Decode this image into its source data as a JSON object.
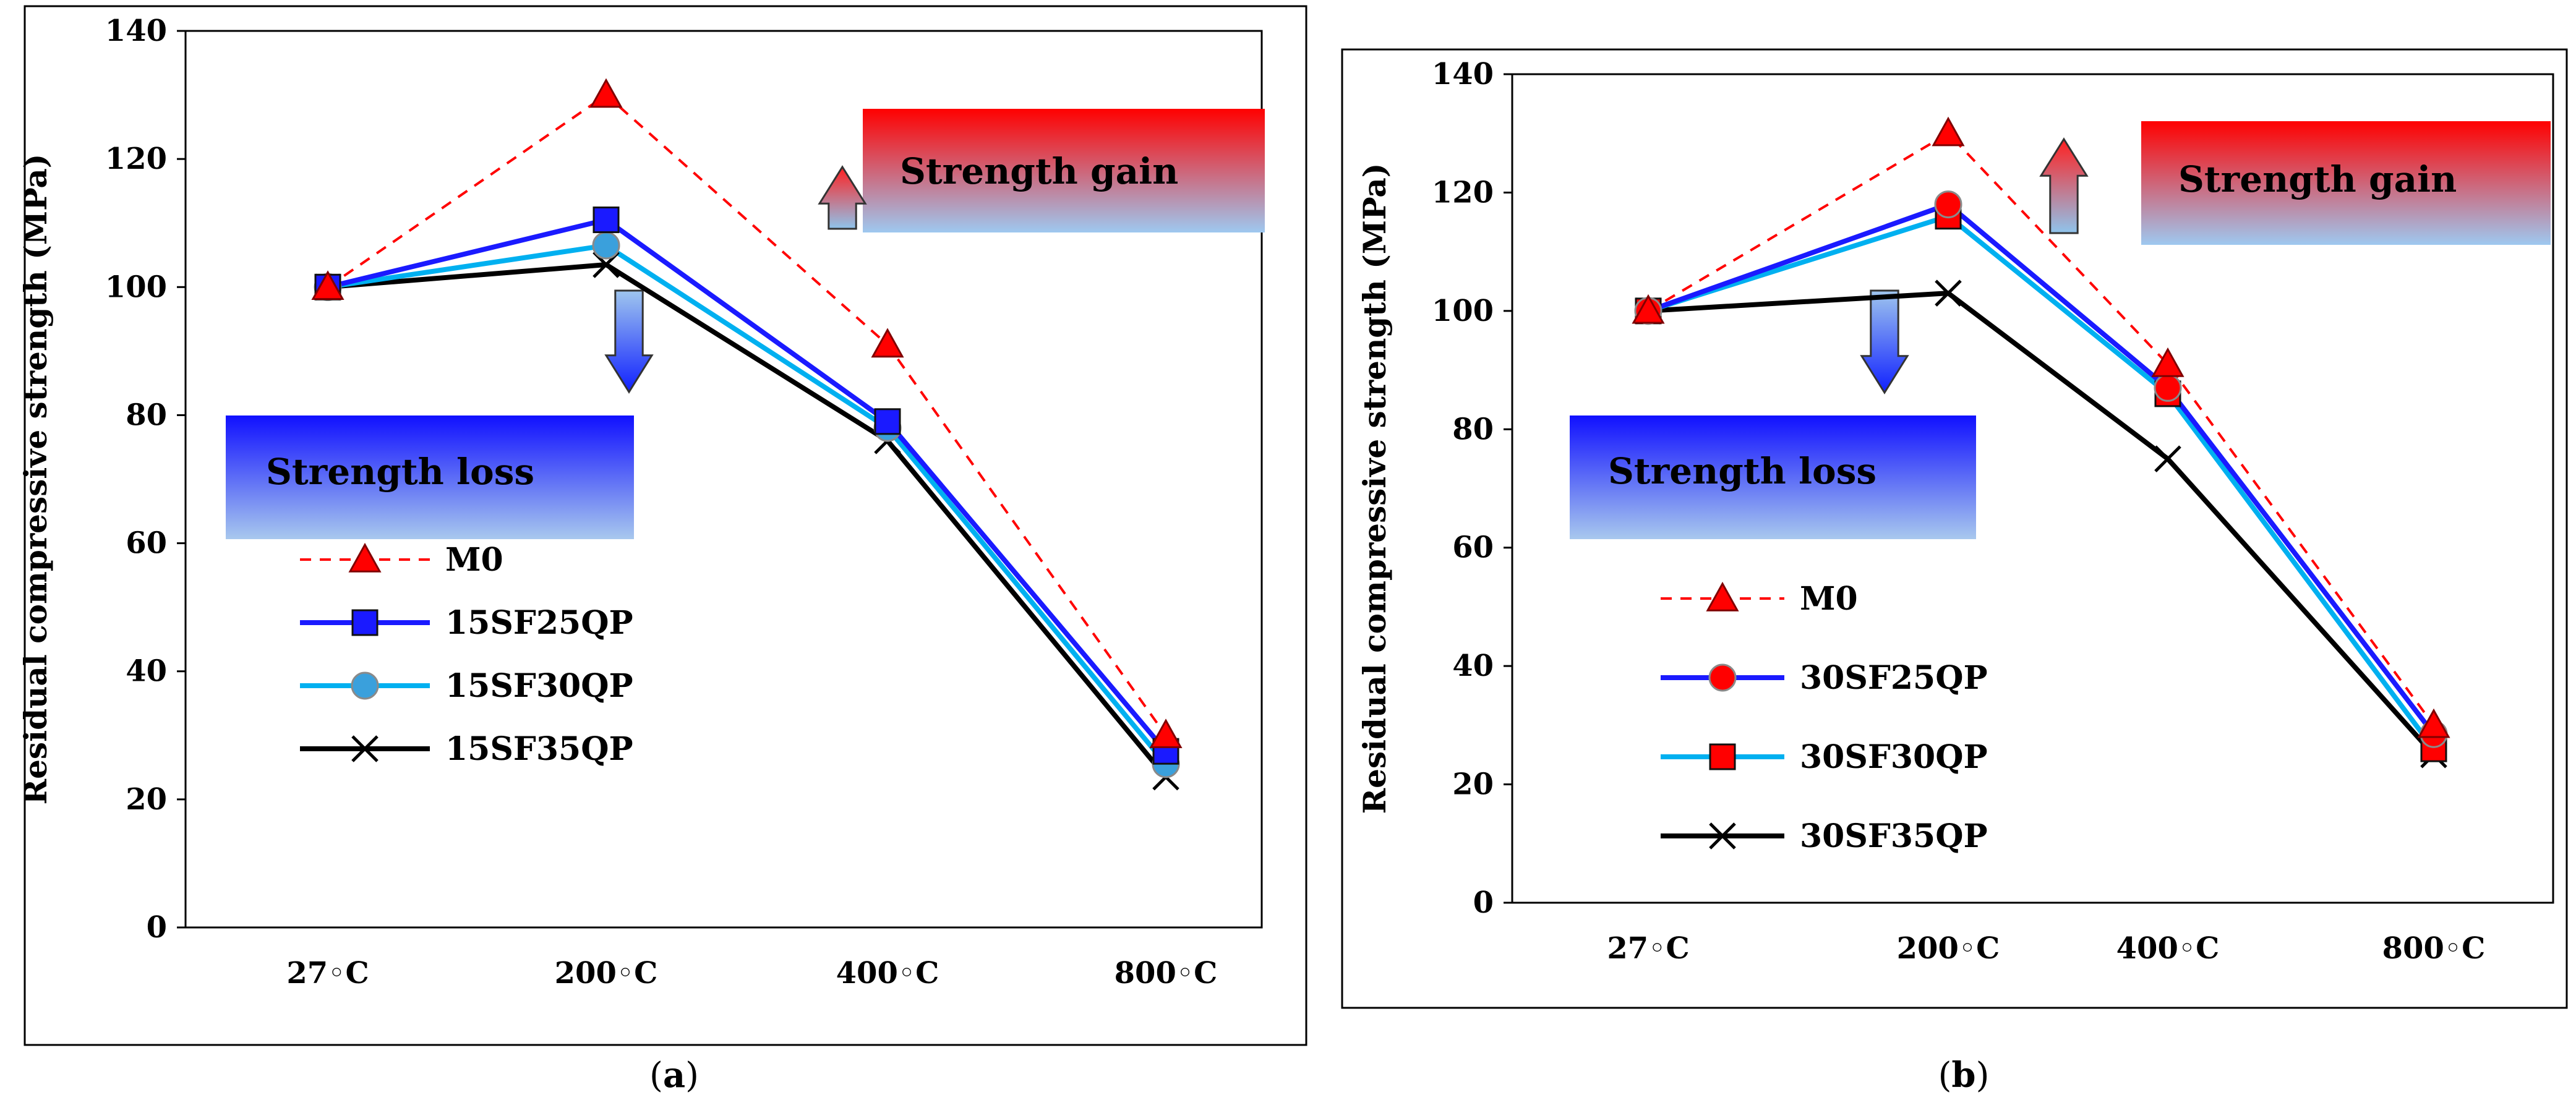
{
  "colors": {
    "M0": "#ff0000",
    "blue": "#1a1aff",
    "cyan": "#00b0f0",
    "black": "#000000",
    "gain_top": "#ff0000",
    "gain_bottom": "#9ec8f0",
    "loss_top": "#1010ff",
    "loss_bottom": "#a8c8ee"
  },
  "chart_data": [
    {
      "type": "line",
      "panel_label": "a",
      "ylabel": "Residual compressive strength (MPa)",
      "ylim": [
        0,
        140
      ],
      "yticks": [
        0,
        20,
        40,
        60,
        80,
        100,
        120,
        140
      ],
      "categories": [
        "27◦C",
        "200◦C",
        "400◦C",
        "800◦C"
      ],
      "gain_label": "Strength gain",
      "loss_label": "Strength loss",
      "series": [
        {
          "name": "M0",
          "values": [
            100,
            130,
            91,
            30
          ],
          "color": "#ff0000",
          "marker": "triangle",
          "dashed": true,
          "fill": "#ff0000"
        },
        {
          "name": "15SF25QP",
          "values": [
            100,
            110.5,
            79,
            27.5
          ],
          "color": "#1a1aff",
          "marker": "square",
          "dashed": false,
          "fill": "#1a1aff"
        },
        {
          "name": "15SF30QP",
          "values": [
            100,
            106.5,
            78,
            25.5
          ],
          "color": "#00b0f0",
          "marker": "circle",
          "dashed": false,
          "fill": "#3aa0dc"
        },
        {
          "name": "15SF35QP",
          "values": [
            100,
            103.5,
            76,
            23.5
          ],
          "color": "#000000",
          "marker": "x",
          "dashed": false,
          "fill": "none"
        }
      ]
    },
    {
      "type": "line",
      "panel_label": "b",
      "ylabel": "Residual compressive strength (MPa)",
      "ylim": [
        0,
        140
      ],
      "yticks": [
        0,
        20,
        40,
        60,
        80,
        100,
        120,
        140
      ],
      "categories": [
        "27◦C",
        "200◦C",
        "400◦C",
        "800◦C"
      ],
      "gain_label": "Strength gain",
      "loss_label": "Strength loss",
      "series": [
        {
          "name": "M0",
          "values": [
            100,
            130,
            91,
            30
          ],
          "color": "#ff0000",
          "marker": "triangle",
          "dashed": true,
          "fill": "#ff0000"
        },
        {
          "name": "30SF25QP",
          "values": [
            100,
            118,
            87,
            28.5
          ],
          "color": "#1a1aff",
          "marker": "circle",
          "dashed": false,
          "fill": "#ff0000"
        },
        {
          "name": "30SF30QP",
          "values": [
            100,
            116,
            86,
            26
          ],
          "color": "#00b0f0",
          "marker": "square",
          "dashed": false,
          "fill": "#ff0000"
        },
        {
          "name": "30SF35QP",
          "values": [
            100,
            103,
            75,
            25
          ],
          "color": "#000000",
          "marker": "x",
          "dashed": false,
          "fill": "none"
        }
      ]
    }
  ]
}
